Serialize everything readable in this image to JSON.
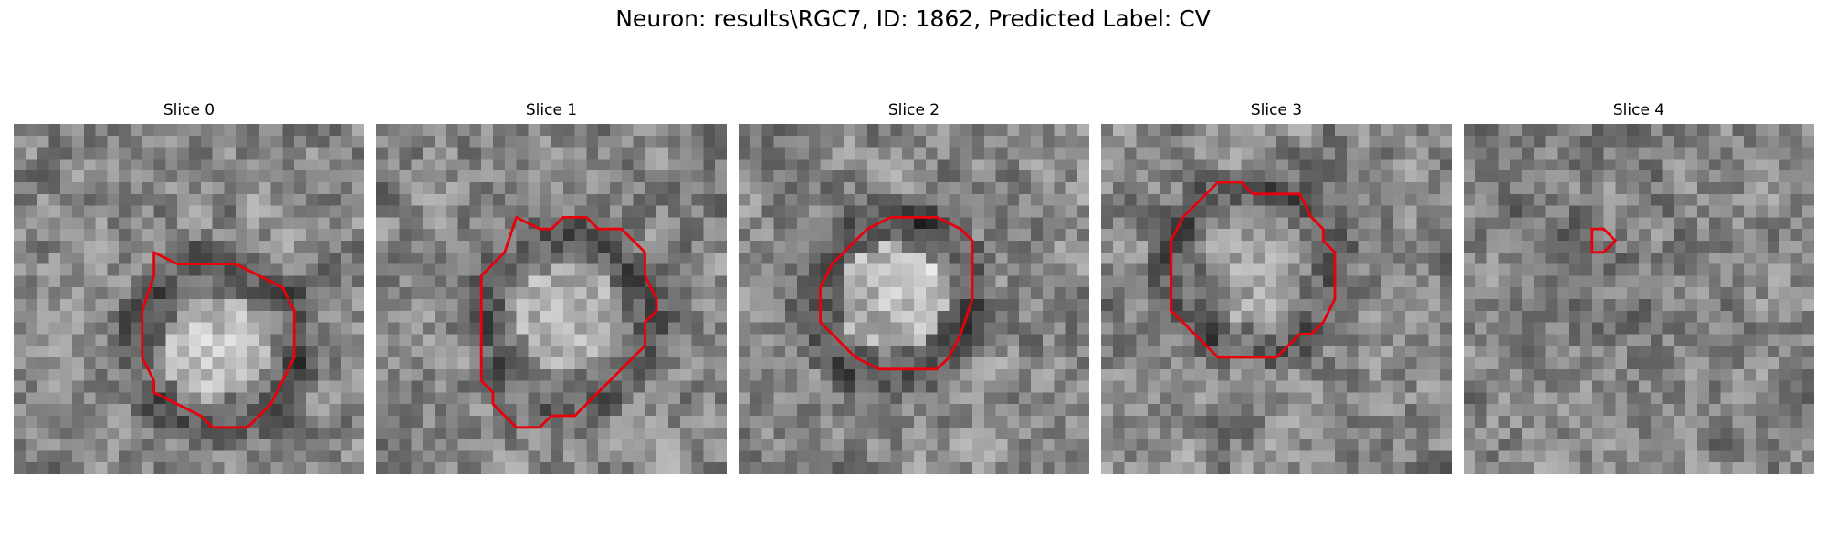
{
  "figure": {
    "title": "Neuron: results\\RGC7, ID: 1862, Predicted Label: CV"
  },
  "panels": [
    {
      "title": "Slice 0",
      "grid_size": 30,
      "seed": 11,
      "center_brightness": 0.18,
      "ring_darkness": 0.22,
      "contour": [
        [
          12,
          11
        ],
        [
          14,
          12
        ],
        [
          19,
          12
        ],
        [
          21,
          13
        ],
        [
          23,
          14
        ],
        [
          24,
          16
        ],
        [
          24,
          20
        ],
        [
          23,
          22
        ],
        [
          22,
          24
        ],
        [
          21,
          25
        ],
        [
          20,
          26
        ],
        [
          17,
          26
        ],
        [
          16,
          25
        ],
        [
          14,
          24
        ],
        [
          12,
          23
        ],
        [
          12,
          22
        ],
        [
          11,
          20
        ],
        [
          11,
          16
        ],
        [
          12,
          13
        ]
      ]
    },
    {
      "title": "Slice 1",
      "grid_size": 30,
      "seed": 23,
      "center_brightness": 0.14,
      "ring_darkness": 0.18,
      "contour": [
        [
          12,
          8
        ],
        [
          14,
          9
        ],
        [
          15,
          9
        ],
        [
          16,
          8
        ],
        [
          18,
          8
        ],
        [
          19,
          9
        ],
        [
          21,
          9
        ],
        [
          22,
          10
        ],
        [
          23,
          11
        ],
        [
          23,
          13
        ],
        [
          24,
          15
        ],
        [
          24,
          16
        ],
        [
          23,
          17
        ],
        [
          23,
          19
        ],
        [
          22,
          20
        ],
        [
          20,
          22
        ],
        [
          18,
          24
        ],
        [
          17,
          25
        ],
        [
          15,
          25
        ],
        [
          14,
          26
        ],
        [
          12,
          26
        ],
        [
          11,
          25
        ],
        [
          10,
          24
        ],
        [
          10,
          23
        ],
        [
          9,
          22
        ],
        [
          9,
          16
        ],
        [
          9,
          13
        ],
        [
          11,
          11
        ]
      ]
    },
    {
      "title": "Slice 2",
      "grid_size": 30,
      "seed": 37,
      "center_brightness": 0.2,
      "ring_darkness": 0.25,
      "contour": [
        [
          11,
          9
        ],
        [
          13,
          8
        ],
        [
          17,
          8
        ],
        [
          19,
          9
        ],
        [
          20,
          10
        ],
        [
          20,
          15
        ],
        [
          19,
          18
        ],
        [
          18,
          20
        ],
        [
          17,
          21
        ],
        [
          14,
          21
        ],
        [
          12,
          21
        ],
        [
          10,
          20
        ],
        [
          8,
          18
        ],
        [
          7,
          17
        ],
        [
          7,
          15
        ],
        [
          7,
          14
        ],
        [
          8,
          12
        ],
        [
          9,
          11
        ]
      ]
    },
    {
      "title": "Slice 3",
      "grid_size": 30,
      "seed": 41,
      "center_brightness": 0.1,
      "ring_darkness": 0.2,
      "contour": [
        [
          11,
          5
        ],
        [
          12,
          5
        ],
        [
          13,
          6
        ],
        [
          17,
          6
        ],
        [
          18,
          8
        ],
        [
          19,
          9
        ],
        [
          19,
          10
        ],
        [
          20,
          11
        ],
        [
          20,
          15
        ],
        [
          19,
          17
        ],
        [
          18,
          18
        ],
        [
          17,
          18
        ],
        [
          16,
          19
        ],
        [
          15,
          20
        ],
        [
          10,
          20
        ],
        [
          9,
          19
        ],
        [
          8,
          18
        ],
        [
          7,
          17
        ],
        [
          6,
          16
        ],
        [
          6,
          13
        ],
        [
          6,
          10
        ],
        [
          7,
          8
        ],
        [
          9,
          6
        ],
        [
          10,
          5
        ]
      ]
    },
    {
      "title": "Slice 4",
      "grid_size": 30,
      "seed": 53,
      "center_brightness": -0.05,
      "ring_darkness": 0.05,
      "contour": [
        [
          11,
          9
        ],
        [
          12,
          9
        ],
        [
          13,
          10
        ],
        [
          12,
          11
        ],
        [
          12,
          11
        ],
        [
          11,
          11
        ],
        [
          11,
          10
        ]
      ]
    }
  ],
  "colors": {
    "contour": "#e8000b",
    "background": "#ffffff"
  }
}
